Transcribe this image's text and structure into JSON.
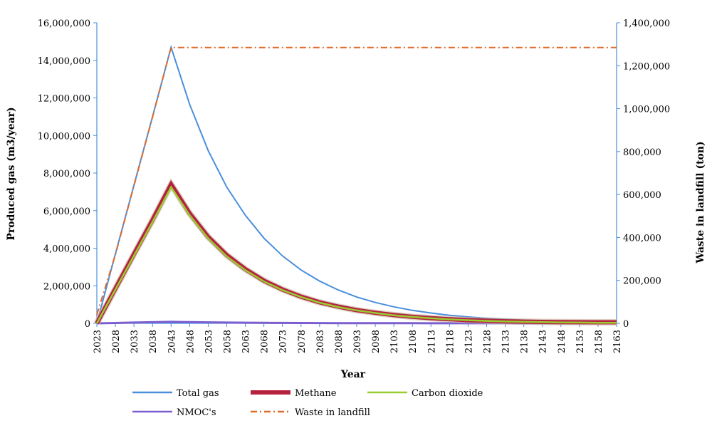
{
  "chart_data": {
    "type": "line",
    "xlabel": "Year",
    "ylabel_left": "Produced gas (m3/year)",
    "ylabel_right": "Waste in landfill (ton)",
    "x_ticks": [
      "2023",
      "2028",
      "2033",
      "2038",
      "2043",
      "2048",
      "2053",
      "2058",
      "2063",
      "2068",
      "2073",
      "2078",
      "2083",
      "2088",
      "2093",
      "2098",
      "2103",
      "2108",
      "2113",
      "2118",
      "2123",
      "2128",
      "2133",
      "2138",
      "2143",
      "2148",
      "2153",
      "2158",
      "2163"
    ],
    "y_left_ticks": [
      "0",
      "2,000,000",
      "4,000,000",
      "6,000,000",
      "8,000,000",
      "10,000,000",
      "12,000,000",
      "14,000,000",
      "16,000,000"
    ],
    "y_right_ticks": [
      "0",
      "200,000",
      "400,000",
      "600,000",
      "800,000",
      "1,000,000",
      "1,200,000",
      "1,400,000"
    ],
    "ylim_left": [
      0,
      16000000
    ],
    "ylim_right": [
      0,
      1400000
    ],
    "xlim": [
      2023,
      2163
    ],
    "grid": false,
    "legend_placement": "bottom",
    "series": [
      {
        "name": "Total gas",
        "axis": "left",
        "color": "#4a8fdc",
        "style": "solid",
        "x": [
          2023,
          2028,
          2033,
          2038,
          2043,
          2048,
          2053,
          2058,
          2063,
          2068,
          2073,
          2078,
          2083,
          2088,
          2093,
          2098,
          2103,
          2108,
          2113,
          2118,
          2123,
          2128,
          2133,
          2138,
          2143,
          2148,
          2153,
          2158,
          2163
        ],
        "values": [
          0,
          3700000,
          7350000,
          11000000,
          14700000,
          11650000,
          9200000,
          7250000,
          5750000,
          4540000,
          3590000,
          2840000,
          2250000,
          1780000,
          1400000,
          1110000,
          880000,
          690000,
          550000,
          430000,
          340000,
          270000,
          215000,
          170000,
          135000,
          105000,
          85000,
          65000,
          50000
        ]
      },
      {
        "name": "Methane",
        "axis": "left",
        "color": "#b5223f",
        "style": "solid",
        "x": [
          2023,
          2028,
          2033,
          2038,
          2043,
          2048,
          2053,
          2058,
          2063,
          2068,
          2073,
          2078,
          2083,
          2088,
          2093,
          2098,
          2103,
          2108,
          2113,
          2118,
          2123,
          2128,
          2133,
          2138,
          2143,
          2148,
          2153,
          2158,
          2163
        ],
        "values": [
          0,
          1850000,
          3680000,
          5500000,
          7400000,
          5850000,
          4600000,
          3630000,
          2880000,
          2270000,
          1800000,
          1420000,
          1120000,
          890000,
          700000,
          560000,
          440000,
          350000,
          275000,
          220000,
          170000,
          135000,
          110000,
          90000,
          75000,
          65000,
          60000,
          55000,
          55000
        ]
      },
      {
        "name": "Carbon dioxide",
        "axis": "left",
        "color": "#9acd32",
        "style": "solid",
        "x": [
          2023,
          2028,
          2033,
          2038,
          2043,
          2048,
          2053,
          2058,
          2063,
          2068,
          2073,
          2078,
          2083,
          2088,
          2093,
          2098,
          2103,
          2108,
          2113,
          2118,
          2123,
          2128,
          2133,
          2138,
          2143,
          2148,
          2153,
          2158,
          2163
        ],
        "values": [
          0,
          1800000,
          3600000,
          5400000,
          7250000,
          5750000,
          4520000,
          3560000,
          2830000,
          2230000,
          1770000,
          1400000,
          1100000,
          870000,
          690000,
          550000,
          430000,
          340000,
          270000,
          210000,
          165000,
          130000,
          100000,
          80000,
          65000,
          50000,
          40000,
          30000,
          25000
        ]
      },
      {
        "name": "NMOC's",
        "axis": "left",
        "color": "#7b5fd0",
        "style": "solid",
        "x": [
          2023,
          2028,
          2033,
          2038,
          2043,
          2048,
          2053,
          2058,
          2063,
          2068,
          2073,
          2078,
          2083,
          2088,
          2093,
          2098,
          2103,
          2108,
          2113,
          2118,
          2123,
          2128,
          2133,
          2138,
          2143,
          2148,
          2153,
          2158,
          2163
        ],
        "values": [
          0,
          20000,
          40000,
          60000,
          80000,
          65000,
          52000,
          42000,
          34000,
          28000,
          23000,
          19000,
          16000,
          13000,
          11000,
          9000,
          7500,
          6000,
          5000,
          4000,
          3500,
          3000,
          2500,
          2000,
          1500,
          1200,
          1000,
          800,
          600
        ]
      },
      {
        "name": "Waste in landfill",
        "axis": "right",
        "color": "#e06a2a",
        "style": "dashdot",
        "x": [
          2023,
          2028,
          2033,
          2038,
          2043,
          2048,
          2053,
          2058,
          2063,
          2068,
          2073,
          2078,
          2083,
          2088,
          2093,
          2098,
          2103,
          2108,
          2113,
          2118,
          2123,
          2128,
          2133,
          2138,
          2143,
          2148,
          2153,
          2158,
          2163
        ],
        "values": [
          40000,
          320000,
          640000,
          960000,
          1285000,
          1285000,
          1285000,
          1285000,
          1285000,
          1285000,
          1285000,
          1285000,
          1285000,
          1285000,
          1285000,
          1285000,
          1285000,
          1285000,
          1285000,
          1285000,
          1285000,
          1285000,
          1285000,
          1285000,
          1285000,
          1285000,
          1285000,
          1285000,
          1285000
        ]
      }
    ]
  }
}
